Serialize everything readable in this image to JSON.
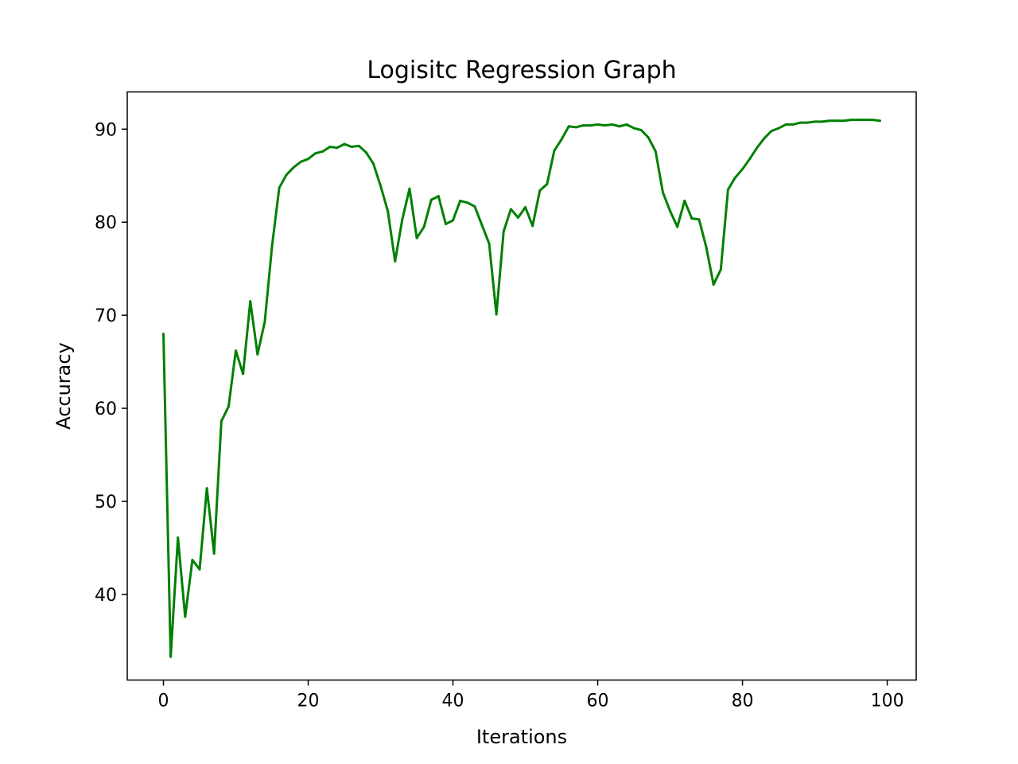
{
  "chart_data": {
    "type": "line",
    "title": "Logisitc Regression Graph",
    "xlabel": "Iterations",
    "ylabel": "Accuracy",
    "xlim": [
      -5,
      104
    ],
    "ylim": [
      30.8,
      94
    ],
    "xticks": [
      0,
      20,
      40,
      60,
      80,
      100
    ],
    "yticks": [
      40,
      50,
      60,
      70,
      80,
      90
    ],
    "grid": false,
    "legend": "none",
    "line_color": "#008000",
    "x": [
      0,
      1,
      2,
      3,
      4,
      5,
      6,
      7,
      8,
      9,
      10,
      11,
      12,
      13,
      14,
      15,
      16,
      17,
      18,
      19,
      20,
      21,
      22,
      23,
      24,
      25,
      26,
      27,
      28,
      29,
      30,
      31,
      32,
      33,
      34,
      35,
      36,
      37,
      38,
      39,
      40,
      41,
      42,
      43,
      44,
      45,
      46,
      47,
      48,
      49,
      50,
      51,
      52,
      53,
      54,
      55,
      56,
      57,
      58,
      59,
      60,
      61,
      62,
      63,
      64,
      65,
      66,
      67,
      68,
      69,
      70,
      71,
      72,
      73,
      74,
      75,
      76,
      77,
      78,
      79,
      80,
      81,
      82,
      83,
      84,
      85,
      86,
      87,
      88,
      89,
      90,
      91,
      92,
      93,
      94,
      95,
      96,
      97,
      98,
      99
    ],
    "values": [
      68.0,
      33.3,
      46.1,
      37.6,
      43.7,
      42.7,
      51.4,
      44.4,
      58.6,
      60.2,
      66.2,
      63.7,
      71.5,
      65.8,
      69.3,
      77.4,
      83.7,
      85.1,
      85.9,
      86.5,
      86.8,
      87.4,
      87.6,
      88.1,
      88.0,
      88.4,
      88.1,
      88.2,
      87.5,
      86.3,
      83.9,
      81.2,
      75.8,
      80.3,
      83.6,
      78.3,
      79.5,
      82.4,
      82.8,
      79.8,
      80.2,
      82.3,
      82.1,
      81.7,
      79.7,
      77.7,
      70.1,
      79.0,
      81.4,
      80.5,
      81.6,
      79.6,
      83.4,
      84.1,
      87.7,
      88.9,
      90.3,
      90.2,
      90.4,
      90.4,
      90.5,
      90.4,
      90.5,
      90.3,
      90.5,
      90.1,
      89.9,
      89.1,
      87.6,
      83.2,
      81.2,
      79.5,
      82.3,
      80.4,
      80.3,
      77.3,
      73.3,
      74.9,
      83.5,
      84.8,
      85.7,
      86.8,
      88.0,
      89.0,
      89.8,
      90.1,
      90.5,
      90.5,
      90.7,
      90.7,
      90.8,
      90.8,
      90.9,
      90.9,
      90.9,
      91.0,
      91.0,
      91.0,
      91.0,
      90.9
    ]
  }
}
